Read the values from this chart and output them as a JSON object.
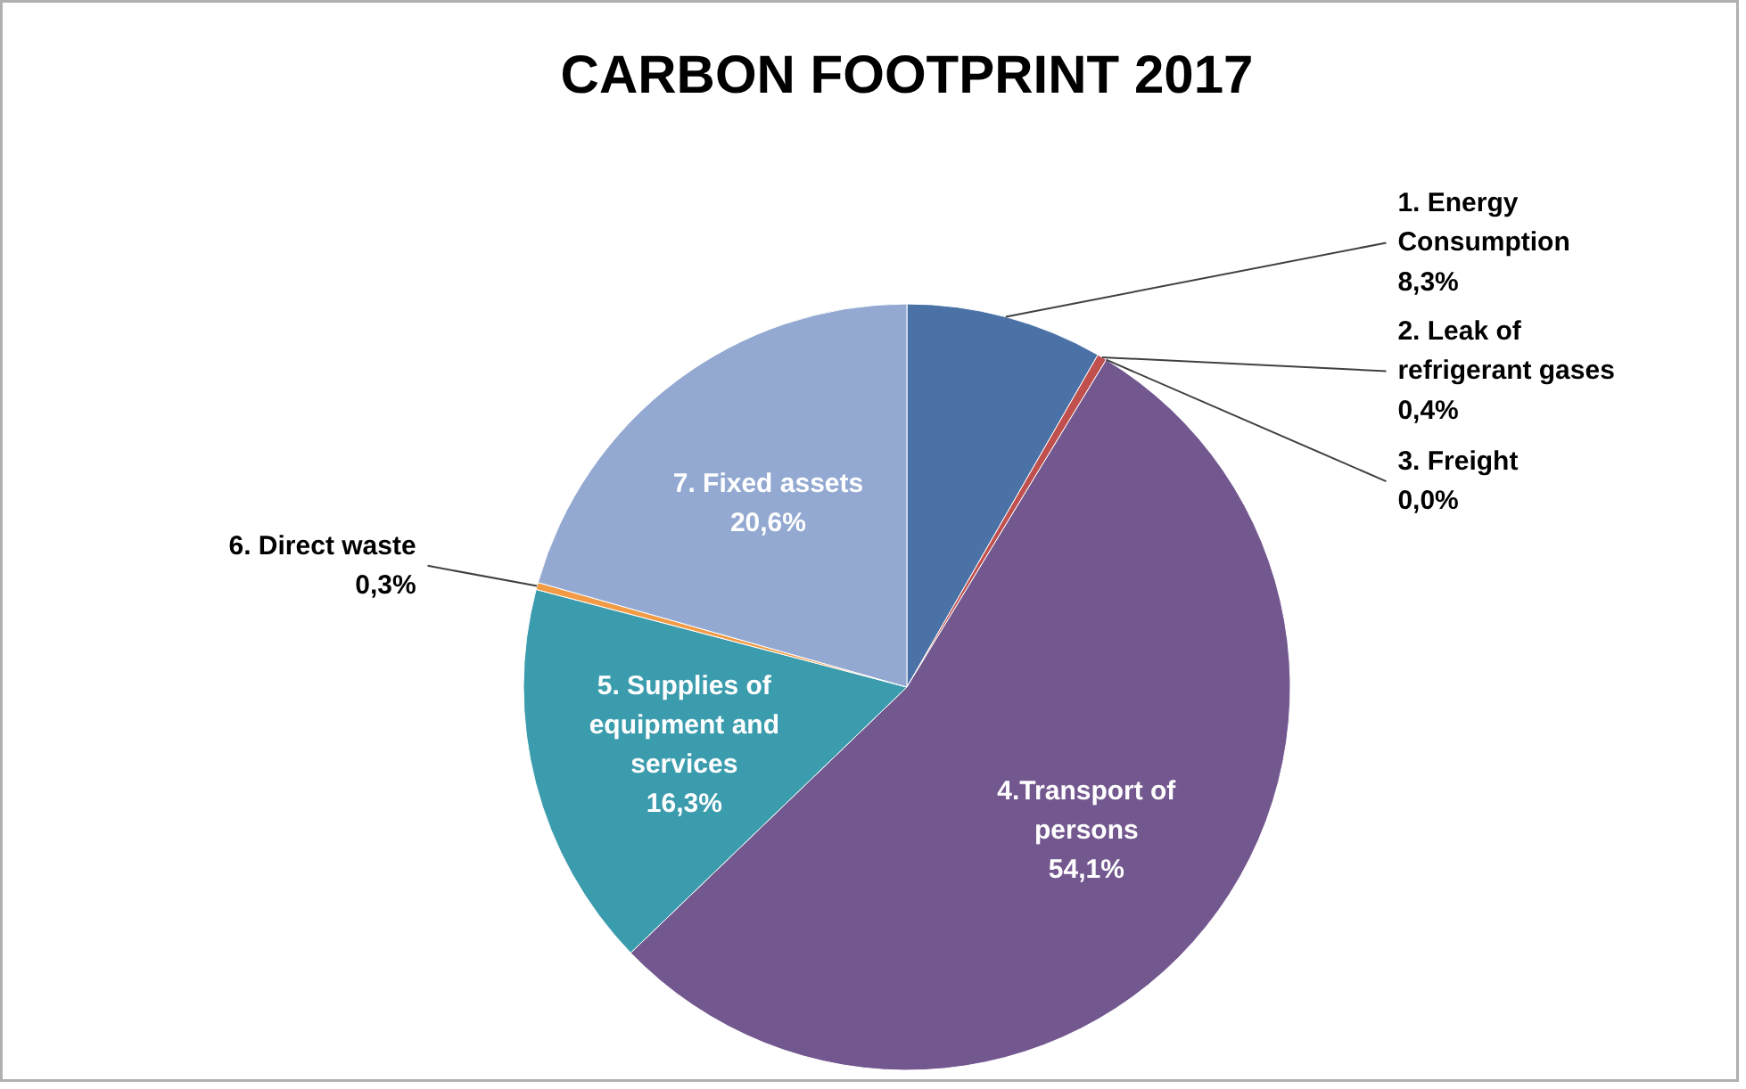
{
  "chart_data": {
    "type": "pie",
    "title": "CARBON FOOTPRINT 2017",
    "categories": [
      "1. Energy Consumption",
      "2. Leak of refrigerant gases",
      "3. Freight",
      "4.Transport of persons",
      "5. Supplies of equipment and services",
      "6. Direct waste",
      "7. Fixed assets"
    ],
    "values": [
      8.3,
      0.4,
      0.0,
      54.1,
      16.3,
      0.3,
      20.6
    ],
    "value_labels": [
      "8,3%",
      "0,4%",
      "0,0%",
      "54,1%",
      "16,3%",
      "0,3%",
      "20,6%"
    ],
    "colors": [
      "#4a72a6",
      "#c0504d",
      "#9bbb59",
      "#73578f",
      "#3b9cae",
      "#f29a44",
      "#93a9d1"
    ]
  }
}
